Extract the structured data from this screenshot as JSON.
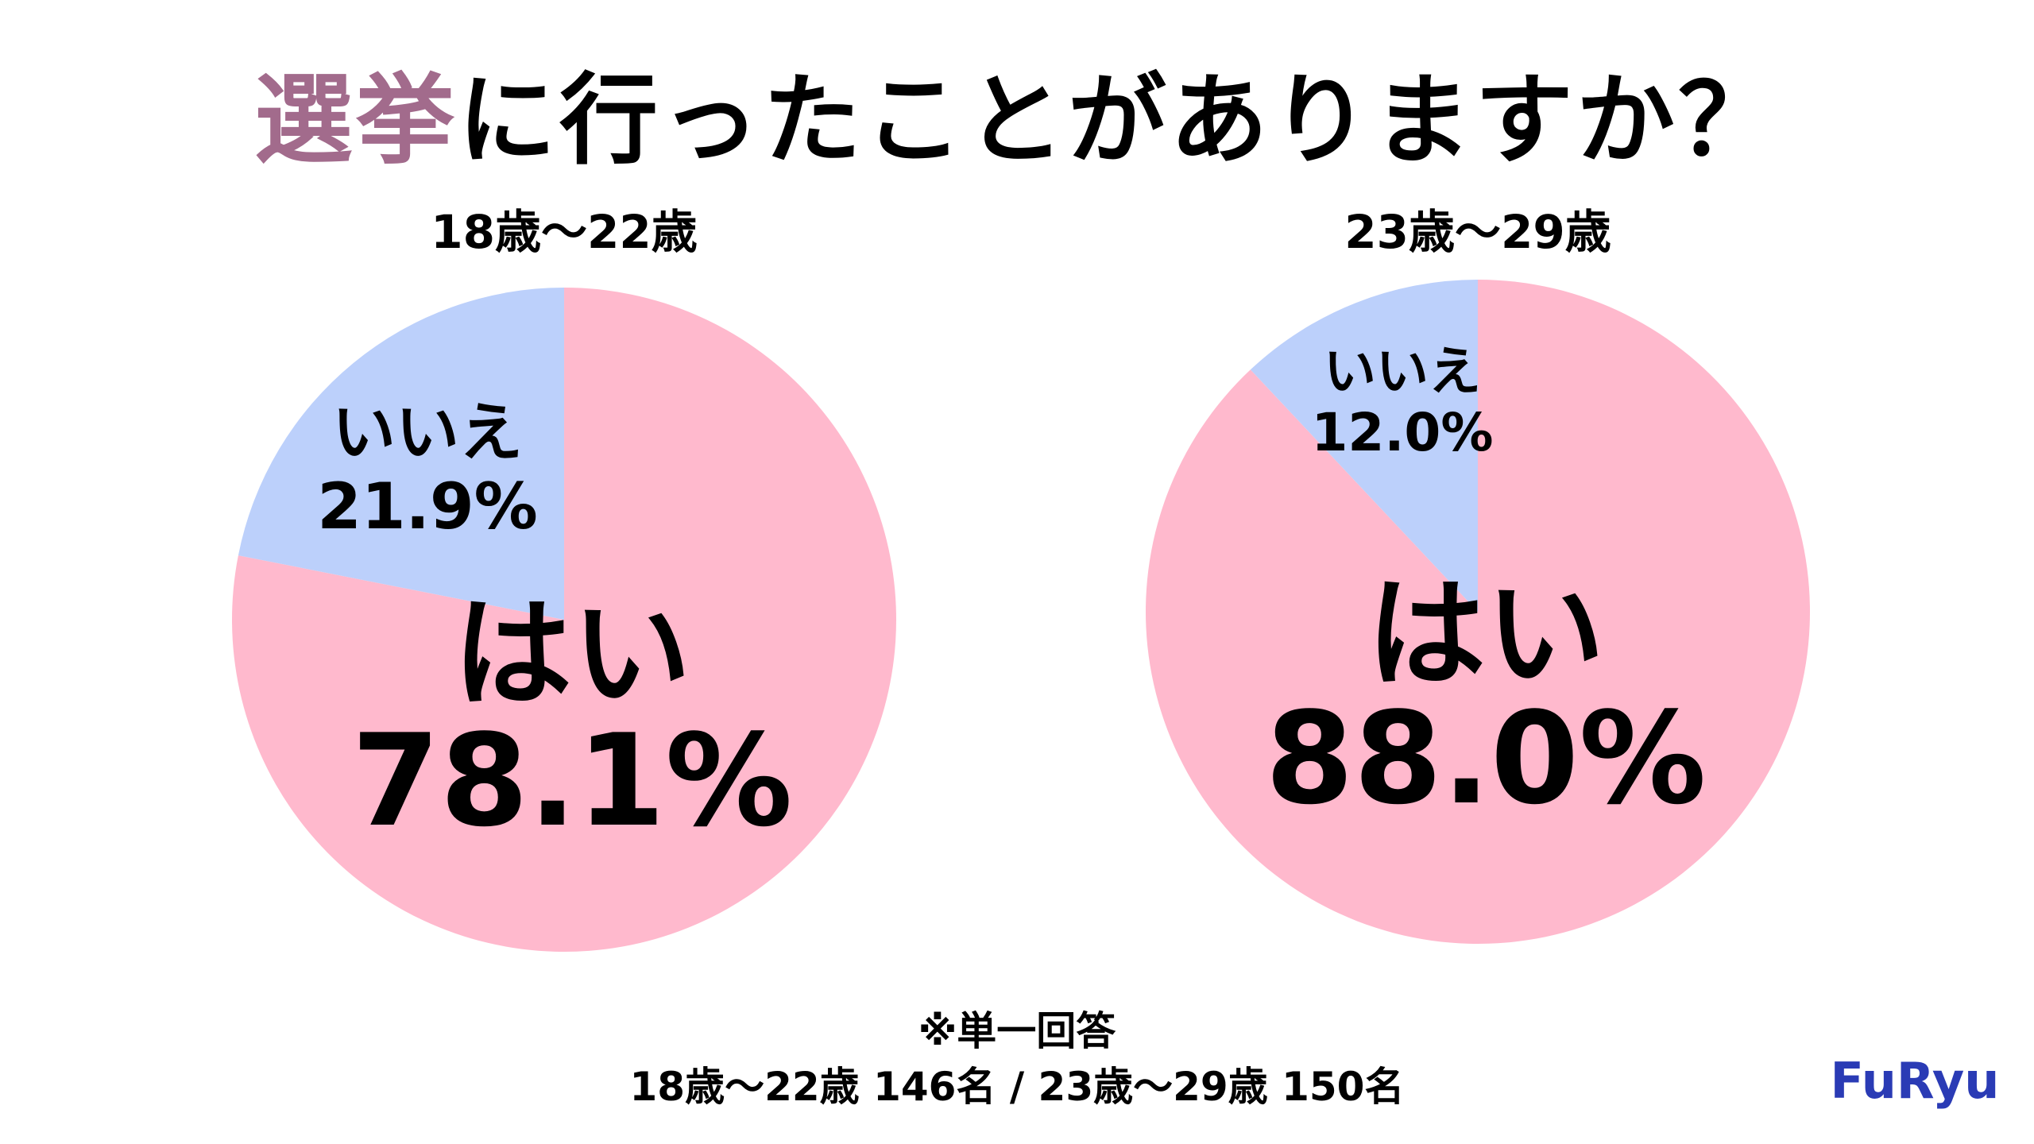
{
  "title": {
    "highlight": "選挙",
    "rest": "に行ったことがありますか？"
  },
  "chart_data": [
    {
      "type": "pie",
      "title": "18歳～22歳",
      "series": [
        {
          "category": "はい",
          "value": 78.1,
          "label": "78.1%"
        },
        {
          "category": "いいえ",
          "value": 21.9,
          "label": "21.9%"
        }
      ]
    },
    {
      "type": "pie",
      "title": "23歳～29歳",
      "series": [
        {
          "category": "はい",
          "value": 88.0,
          "label": "88.0%"
        },
        {
          "category": "いいえ",
          "value": 12.0,
          "label": "12.0%"
        }
      ]
    }
  ],
  "colors": {
    "yes": "#ffb9cd",
    "no": "#bcd0fb",
    "title_highlight": "#a26b8c",
    "brand": "#2a3bb5"
  },
  "notes": {
    "line1": "※単一回答",
    "line2": "18歳～22歳 146名 / 23歳～29歳 150名"
  },
  "brand": {
    "name": "FuRyu"
  }
}
